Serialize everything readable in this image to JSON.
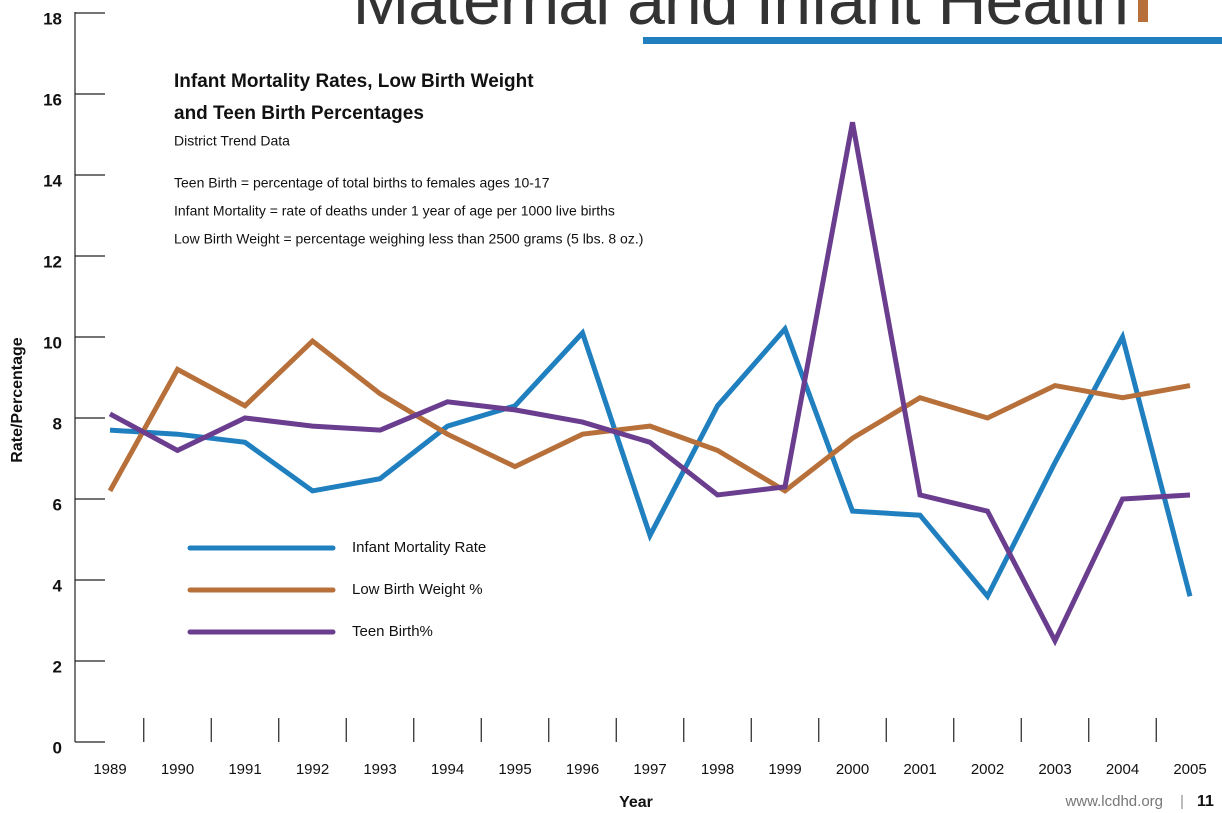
{
  "header": "Maternal and Infant Health",
  "footer": {
    "url": "www.lcdhd.org",
    "page": "11"
  },
  "chart_data": {
    "type": "line",
    "title": [
      "Infant Mortality Rates, Low Birth Weight",
      "and Teen Birth Percentages"
    ],
    "subtitle": "District Trend Data",
    "notes": [
      "Teen Birth = percentage of total births to females ages 10-17",
      "Infant Mortality = rate of deaths under 1 year of age per 1000 live births",
      "Low Birth Weight = percentage weighing less than 2500 grams (5 lbs. 8 oz.)"
    ],
    "xlabel": "Year",
    "ylabel": "Rate/Percentage",
    "categories": [
      "1989",
      "1990",
      "1991",
      "1992",
      "1993",
      "1994",
      "1995",
      "1996",
      "1997",
      "1998",
      "1999",
      "2000",
      "2001",
      "2002",
      "2003",
      "2004",
      "2005"
    ],
    "series": [
      {
        "name": "Infant Mortality Rate",
        "color": "#1f7fbf",
        "values": [
          7.7,
          7.6,
          7.4,
          6.2,
          6.5,
          7.8,
          8.3,
          10.1,
          5.1,
          8.3,
          10.2,
          5.7,
          5.6,
          3.6,
          6.9,
          10.0,
          3.6
        ]
      },
      {
        "name": "Low Birth Weight %",
        "color": "#b8703a",
        "values": [
          6.2,
          9.2,
          8.3,
          9.9,
          8.6,
          7.6,
          6.8,
          7.6,
          7.8,
          7.2,
          6.2,
          7.5,
          8.5,
          8.0,
          8.8,
          8.5,
          8.8
        ]
      },
      {
        "name": "Teen Birth%",
        "color": "#6a3d8f",
        "values": [
          8.1,
          7.2,
          8.0,
          7.8,
          7.7,
          8.4,
          8.2,
          7.9,
          7.4,
          6.1,
          6.3,
          15.3,
          6.1,
          5.7,
          2.5,
          6.0,
          6.1
        ]
      }
    ],
    "ylim": [
      0,
      18
    ],
    "yticks": [
      0,
      2,
      4,
      6,
      8,
      10,
      12,
      14,
      16,
      18
    ],
    "grid": false
  }
}
